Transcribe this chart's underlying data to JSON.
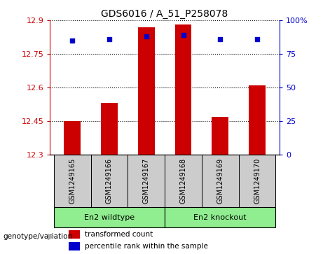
{
  "title": "GDS6016 / A_51_P258078",
  "samples": [
    "GSM1249165",
    "GSM1249166",
    "GSM1249167",
    "GSM1249168",
    "GSM1249169",
    "GSM1249170"
  ],
  "bar_values": [
    12.45,
    12.53,
    12.87,
    12.88,
    12.47,
    12.61
  ],
  "percentile_values": [
    85,
    86,
    88,
    89,
    86,
    86
  ],
  "ymin": 12.3,
  "ymax": 12.9,
  "yticks": [
    12.3,
    12.45,
    12.6,
    12.75,
    12.9
  ],
  "ytick_labels": [
    "12.3",
    "12.45",
    "12.6",
    "12.75",
    "12.9"
  ],
  "y2min": 0,
  "y2max": 100,
  "y2ticks": [
    0,
    25,
    50,
    75,
    100
  ],
  "y2tick_labels": [
    "0",
    "25",
    "50",
    "75",
    "100%"
  ],
  "bar_color": "#cc0000",
  "dot_color": "#0000cc",
  "grid_color": "#000000",
  "group1_label": "En2 wildtype",
  "group2_label": "En2 knockout",
  "group1_indices": [
    0,
    1,
    2
  ],
  "group2_indices": [
    3,
    4,
    5
  ],
  "group_bg_color": "#90ee90",
  "sample_bg_color": "#cccccc",
  "annotation_label": "genotype/variation",
  "legend_bar_label": "transformed count",
  "legend_dot_label": "percentile rank within the sample",
  "left_axis_color": "#cc0000",
  "right_axis_color": "#0000cc",
  "bar_width": 0.45
}
